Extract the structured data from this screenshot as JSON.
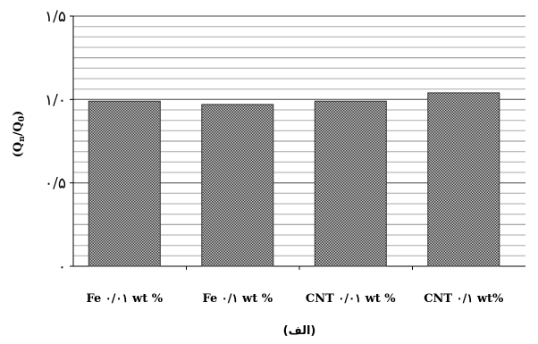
{
  "chart_data": {
    "type": "bar",
    "categories": [
      "Fe ۰/۰۱ wt %",
      "Fe ۰/۱ wt %",
      "CNT ۰/۰۱ wt %",
      "CNT ۰/۱ wt%"
    ],
    "values": [
      0.99,
      0.97,
      0.99,
      1.04
    ],
    "ylabel": "(Qn/Q0)",
    "ylim": [
      0,
      1.5
    ],
    "yticks": [
      {
        "value": 0,
        "label": "۰"
      },
      {
        "value": 0.5,
        "label": "۰/۵"
      },
      {
        "value": 1.0,
        "label": "۱/۰"
      },
      {
        "value": 1.5,
        "label": "۱/۵"
      }
    ],
    "grid": true,
    "bar_pattern": "crosshatch",
    "caption": "(الف)"
  }
}
